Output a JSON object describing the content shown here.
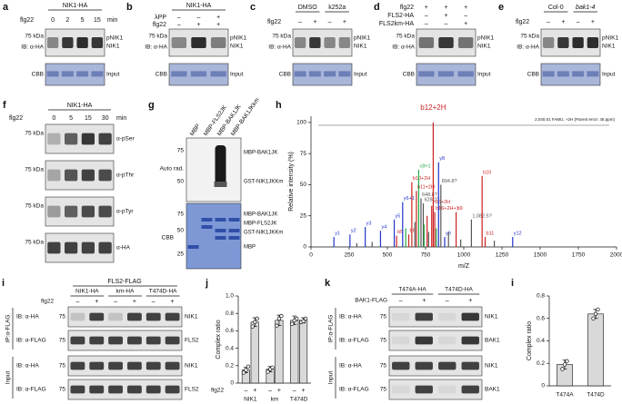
{
  "panels": {
    "a": {
      "letter": "a",
      "title": "NIK1-HA",
      "flg22": "flg22",
      "lanes": [
        "0",
        "2",
        "5",
        "15"
      ],
      "unit": "min",
      "mw": "75 kDa",
      "ib": "IB: α-HA",
      "bands": [
        "pNIK1",
        "NIK1"
      ],
      "cbb": "CBB",
      "input": "Input"
    },
    "b": {
      "letter": "b",
      "title": "NIK1-HA",
      "rows": [
        {
          "label": "λPP",
          "signs": [
            "–",
            "–",
            "+"
          ]
        },
        {
          "label": "flg22",
          "signs": [
            "–",
            "+",
            "+"
          ]
        }
      ],
      "mw": "75 kDa",
      "ib": "IB: α-HA",
      "bands": [
        "pNIK1",
        "NIK1"
      ],
      "cbb": "CBB",
      "input": "Input"
    },
    "c": {
      "letter": "c",
      "groups": [
        "DMSO",
        "k252a"
      ],
      "flg22": "flg22",
      "signs": [
        "–",
        "+",
        "–",
        "+"
      ],
      "mw": "75 kDa",
      "ib": "IB: α-HA",
      "bands": [
        "pNIK1",
        "NIK1"
      ],
      "cbb": "CBB",
      "input": "Input"
    },
    "d": {
      "letter": "d",
      "rows": [
        {
          "label": "flg22",
          "signs": [
            "+",
            "+",
            "+"
          ]
        },
        {
          "label": "FLS2-HA",
          "signs": [
            "–",
            "+",
            "–"
          ]
        },
        {
          "label": "FLS2km-HA",
          "signs": [
            "–",
            "–",
            "+"
          ]
        }
      ],
      "mw": "75 kDa",
      "ib": "IB: α-HA",
      "bands": [
        "pNIK1",
        "NIK1"
      ],
      "cbb": "CBB",
      "input": "Input"
    },
    "e": {
      "letter": "e",
      "groups": [
        "Col-0",
        "bak1-4"
      ],
      "flg22": "flg22",
      "signs": [
        "–",
        "+",
        "–",
        "+"
      ],
      "mw": "75 kDa",
      "ib": "IB: α-HA",
      "bands": [
        "pNIK1",
        "NIK1"
      ],
      "cbb": "CBB",
      "input": "Input"
    },
    "f": {
      "letter": "f",
      "title": "NIK1-HA",
      "flg22": "flg22",
      "lanes": [
        "0",
        "5",
        "15",
        "30"
      ],
      "unit": "min",
      "mws": [
        "75 kDa",
        "75 kDa",
        "75 kDa",
        "75 kDa"
      ],
      "antibodies": [
        "α-pSer",
        "α-pThr",
        "α-pTyr",
        "α-HA"
      ]
    },
    "g": {
      "letter": "g",
      "lanes": [
        "MBP",
        "MBP-FLS2JK",
        "MBP-BAK1JK",
        "MBP-BAK1JKkm"
      ],
      "autorad": "Auto rad.",
      "cbb": "CBB",
      "mws_top": [
        "75",
        "50"
      ],
      "mws_bottom": [
        "75",
        "50",
        "25"
      ],
      "bands_top": [
        "MBP-BAK1JK",
        "GST-NIK1JKKm"
      ],
      "bands_bottom": [
        "MBP-BAK1JK",
        "MBP-FLS2JK",
        "GST-NIK1JKKm",
        "MBP"
      ]
    },
    "h": {
      "letter": "h",
      "header": "2,040.01 FAMU, +2H (Parent error: 45 ppm)"
    },
    "i": {
      "letter": "i",
      "title": "FLS2-FLAG",
      "groups": [
        "NIK1-HA",
        "km-HA",
        "T474D-HA"
      ],
      "flg22": "flg22",
      "signs": [
        "–",
        "+",
        "–",
        "+",
        "–",
        "+"
      ],
      "ip": "IP:α-FLAG",
      "input": "Input",
      "ibs": [
        "IB: α-HA",
        "IB: α-FLAG",
        "IB: α-HA",
        "IB: α-FLAG"
      ],
      "mws": [
        "75",
        "75",
        "75",
        "75"
      ],
      "bands": [
        "NIK1",
        "FLS2",
        "NIK1",
        "FLS2"
      ]
    },
    "j": {
      "letter": "j"
    },
    "k": {
      "letter": "k",
      "groups": [
        "T474A-HA",
        "T474D-HA"
      ],
      "row": "BAK1-FLAG",
      "signs": [
        "–",
        "+",
        "–",
        "+"
      ],
      "ip": "IP:α-FLAG",
      "input": "Input",
      "ibs": [
        "IB: α-HA",
        "IB: α-FLAG",
        "IB: α-HA",
        "IB: α-FLAG"
      ],
      "mws": [
        "75",
        "75",
        "75",
        "75"
      ],
      "bands": [
        "NIK1",
        "BAK1",
        "NIK1",
        "BAK1"
      ]
    },
    "i2": {
      "letter": "i"
    }
  },
  "chart_data": [
    {
      "type": "stem",
      "title": "b12+2H",
      "xlabel": "m/Z",
      "ylabel": "Relative intensity (%)",
      "xlim": [
        0,
        2000
      ],
      "ylim": [
        0,
        105
      ],
      "xticks": [
        0,
        250,
        500,
        750,
        1000,
        1250,
        1500,
        1750,
        2000
      ],
      "yticks": [
        0,
        25,
        50,
        75,
        100
      ],
      "x": [
        150,
        255,
        300,
        355,
        400,
        455,
        545,
        560,
        600,
        620,
        640,
        660,
        680,
        690,
        705,
        720,
        735,
        740,
        760,
        770,
        790,
        800,
        810,
        820,
        835,
        850,
        875,
        900,
        950,
        980,
        1050,
        1120,
        1140,
        1200,
        1320
      ],
      "values": [
        8,
        10,
        3,
        16,
        4,
        13,
        22,
        9,
        36,
        15,
        10,
        52,
        20,
        45,
        62,
        39,
        35,
        18,
        25,
        12,
        33,
        100,
        28,
        15,
        68,
        50,
        8,
        12,
        28,
        6,
        22,
        57,
        8,
        5,
        8
      ],
      "colors": [
        "#2233cc",
        "#2233cc",
        "#555555",
        "#2233cc",
        "#555555",
        "#2233cc",
        "#2233cc",
        "#cc2222",
        "#2233cc",
        "#22aa44",
        "#cc2222",
        "#cc2222",
        "#555555",
        "#cc2222",
        "#22aa44",
        "#555555",
        "#555555",
        "#22aa44",
        "#cc2222",
        "#555555",
        "#cc2222",
        "#cc2222",
        "#cc2222",
        "#22aa44",
        "#2233cc",
        "#555555",
        "#2233cc",
        "#555555",
        "#cc2222",
        "#555555",
        "#555555",
        "#cc2222",
        "#cc2222",
        "#555555",
        "#2233cc"
      ],
      "peak_labels": [
        "y1",
        "y2",
        null,
        "y3",
        null,
        "y4",
        "y5",
        "b5",
        "y6+1",
        null,
        "b6",
        "b10+2H",
        null,
        "b11+2H",
        "c8+1",
        "648.8?",
        "628.2?",
        null,
        null,
        null,
        "b16+2H",
        null,
        "b16+2H+1",
        null,
        "y8",
        "894.8?",
        "y9",
        null,
        "b9",
        null,
        "1,082.5?",
        "b10",
        "b11",
        null,
        "y12"
      ]
    },
    {
      "type": "bar",
      "ylabel": "Complex ratio",
      "x_row_label": "flg22",
      "categories": [
        "NIK1",
        "km",
        "T474D"
      ],
      "ylim": [
        0,
        1
      ],
      "yticks": [
        0,
        0.2,
        0.4,
        0.6,
        0.8,
        {
          "value": 1,
          "label": "1.0"
        }
      ],
      "color": "#d9d9d9",
      "series": [
        {
          "name": "–",
          "values": [
            0.15,
            0.16,
            0.72
          ],
          "errors": [
            0.03,
            0.03,
            0.05
          ],
          "points": [
            [
              0.12,
              0.15,
              0.19
            ],
            [
              0.13,
              0.16,
              0.18
            ],
            [
              0.68,
              0.72,
              0.74
            ]
          ]
        },
        {
          "name": "+",
          "values": [
            0.7,
            0.72,
            0.72
          ],
          "errors": [
            0.05,
            0.06,
            0.03
          ],
          "points": [
            [
              0.65,
              0.7,
              0.74
            ],
            [
              0.66,
              0.74,
              0.77
            ],
            [
              0.7,
              0.71,
              0.74
            ]
          ]
        }
      ]
    },
    {
      "type": "bar",
      "ylabel": "Complex ratio",
      "categories": [
        "T474A",
        "T474D"
      ],
      "ylim": [
        0,
        0.8
      ],
      "yticks": [
        0,
        0.2,
        0.4,
        0.6,
        0.8
      ],
      "color": "#d9d9d9",
      "series": [
        {
          "values": [
            0.19,
            0.64
          ],
          "errors": [
            0.04,
            0.04
          ],
          "points": [
            [
              0.15,
              0.19,
              0.22
            ],
            [
              0.6,
              0.64,
              0.68
            ]
          ]
        }
      ]
    }
  ]
}
